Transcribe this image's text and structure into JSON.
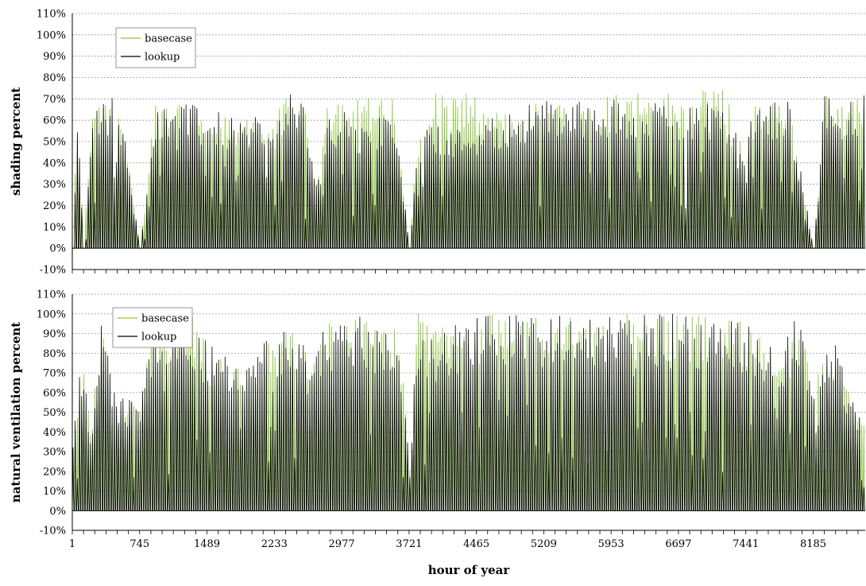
{
  "xlabel": "hour of year",
  "colors": {
    "basecase": "#8cc63f",
    "lookup": "#000000",
    "grid": "#9a9a9a"
  },
  "chart_data": [
    {
      "type": "line",
      "title": "",
      "ylabel": "shading percent",
      "ylim": [
        -10,
        110
      ],
      "y_ticks": [
        "-10%",
        "0%",
        "10%",
        "20%",
        "30%",
        "40%",
        "50%",
        "60%",
        "70%",
        "80%",
        "90%",
        "100%",
        "110%"
      ],
      "xlim": [
        1,
        8760
      ],
      "x_ticks": [],
      "grid": "horizontal dotted",
      "legend_position": "top-left",
      "series": [
        {
          "name": "basecase",
          "color": "#8cc63f",
          "daily_peak_profile": [
            [
              1,
              0
            ],
            [
              48,
              68
            ],
            [
              120,
              0
            ],
            [
              200,
              62
            ],
            [
              336,
              69
            ],
            [
              500,
              74
            ],
            [
              745,
              0
            ],
            [
              900,
              70
            ],
            [
              1050,
              72
            ],
            [
              1100,
              73
            ],
            [
              1300,
              68
            ],
            [
              1489,
              62
            ],
            [
              1600,
              64
            ],
            [
              1800,
              60
            ],
            [
              2000,
              63
            ],
            [
              2233,
              62
            ],
            [
              2400,
              74
            ],
            [
              2550,
              72
            ],
            [
              2700,
              30
            ],
            [
              2800,
              74
            ],
            [
              2977,
              73
            ],
            [
              3100,
              74
            ],
            [
              3200,
              74
            ],
            [
              3400,
              70
            ],
            [
              3550,
              72
            ],
            [
              3721,
              0
            ],
            [
              3800,
              50
            ],
            [
              3900,
              60
            ],
            [
              4000,
              74
            ],
            [
              4100,
              75
            ],
            [
              4200,
              72
            ],
            [
              4300,
              74
            ],
            [
              4400,
              75
            ],
            [
              4465,
              70
            ],
            [
              4600,
              60
            ],
            [
              4700,
              65
            ],
            [
              4800,
              64
            ],
            [
              5000,
              68
            ],
            [
              5209,
              70
            ],
            [
              5400,
              70
            ],
            [
              5600,
              72
            ],
            [
              5800,
              74
            ],
            [
              5953,
              74
            ],
            [
              6100,
              74
            ],
            [
              6300,
              75
            ],
            [
              6500,
              75
            ],
            [
              6697,
              70
            ],
            [
              6800,
              73
            ],
            [
              7000,
              74
            ],
            [
              7200,
              75
            ],
            [
              7441,
              40
            ],
            [
              7500,
              70
            ],
            [
              7700,
              68
            ],
            [
              7900,
              72
            ],
            [
              8185,
              0
            ],
            [
              8300,
              72
            ],
            [
              8500,
              70
            ],
            [
              8600,
              73
            ],
            [
              8760,
              72
            ]
          ]
        },
        {
          "name": "lookup",
          "color": "#000000",
          "daily_peak_profile": [
            [
              1,
              0
            ],
            [
              48,
              68
            ],
            [
              120,
              0
            ],
            [
              200,
              62
            ],
            [
              336,
              69
            ],
            [
              500,
              74
            ],
            [
              745,
              0
            ],
            [
              900,
              70
            ],
            [
              1050,
              72
            ],
            [
              1100,
              73
            ],
            [
              1300,
              68
            ],
            [
              1489,
              62
            ],
            [
              1600,
              64
            ],
            [
              1800,
              60
            ],
            [
              2000,
              63
            ],
            [
              2233,
              62
            ],
            [
              2400,
              72
            ],
            [
              2550,
              70
            ],
            [
              2700,
              30
            ],
            [
              2800,
              60
            ],
            [
              2977,
              65
            ],
            [
              3100,
              60
            ],
            [
              3200,
              58
            ],
            [
              3400,
              62
            ],
            [
              3550,
              65
            ],
            [
              3721,
              0
            ],
            [
              3800,
              48
            ],
            [
              3900,
              55
            ],
            [
              4000,
              62
            ],
            [
              4100,
              60
            ],
            [
              4200,
              55
            ],
            [
              4300,
              58
            ],
            [
              4400,
              62
            ],
            [
              4465,
              60
            ],
            [
              4600,
              60
            ],
            [
              4700,
              65
            ],
            [
              4800,
              64
            ],
            [
              5000,
              68
            ],
            [
              5209,
              70
            ],
            [
              5400,
              70
            ],
            [
              5600,
              70
            ],
            [
              5800,
              70
            ],
            [
              5953,
              70
            ],
            [
              6100,
              70
            ],
            [
              6300,
              70
            ],
            [
              6500,
              70
            ],
            [
              6697,
              68
            ],
            [
              6800,
              70
            ],
            [
              7000,
              70
            ],
            [
              7200,
              70
            ],
            [
              7441,
              40
            ],
            [
              7500,
              70
            ],
            [
              7700,
              68
            ],
            [
              7900,
              72
            ],
            [
              8185,
              0
            ],
            [
              8300,
              72
            ],
            [
              8500,
              70
            ],
            [
              8600,
              73
            ],
            [
              8760,
              72
            ]
          ]
        }
      ]
    },
    {
      "type": "line",
      "title": "",
      "ylabel": "natural ventilation percent",
      "ylim": [
        -10,
        110
      ],
      "y_ticks": [
        "-10%",
        "0%",
        "10%",
        "20%",
        "30%",
        "40%",
        "50%",
        "60%",
        "70%",
        "80%",
        "90%",
        "100%",
        "110%"
      ],
      "xlim": [
        1,
        8760
      ],
      "x_ticks": [
        "1",
        "745",
        "1489",
        "2233",
        "2977",
        "3721",
        "4465",
        "5209",
        "5953",
        "6697",
        "7441",
        "8185"
      ],
      "grid": "horizontal dotted",
      "legend_position": "top-left",
      "series": [
        {
          "name": "basecase",
          "color": "#8cc63f",
          "daily_peak_profile": [
            [
              1,
              35
            ],
            [
              100,
              80
            ],
            [
              200,
              40
            ],
            [
              300,
              100
            ],
            [
              500,
              60
            ],
            [
              745,
              55
            ],
            [
              900,
              100
            ],
            [
              1100,
              90
            ],
            [
              1300,
              100
            ],
            [
              1489,
              85
            ],
            [
              1700,
              80
            ],
            [
              1900,
              70
            ],
            [
              2100,
              90
            ],
            [
              2233,
              80
            ],
            [
              2400,
              100
            ],
            [
              2600,
              80
            ],
            [
              2800,
              100
            ],
            [
              2977,
              100
            ],
            [
              3200,
              100
            ],
            [
              3400,
              90
            ],
            [
              3600,
              100
            ],
            [
              3721,
              20
            ],
            [
              3800,
              100
            ],
            [
              4000,
              100
            ],
            [
              4200,
              100
            ],
            [
              4465,
              100
            ],
            [
              4700,
              100
            ],
            [
              5000,
              100
            ],
            [
              5209,
              100
            ],
            [
              5500,
              100
            ],
            [
              5800,
              100
            ],
            [
              5953,
              100
            ],
            [
              6200,
              100
            ],
            [
              6500,
              100
            ],
            [
              6697,
              100
            ],
            [
              6900,
              100
            ],
            [
              7200,
              100
            ],
            [
              7300,
              100
            ],
            [
              7441,
              95
            ],
            [
              7600,
              90
            ],
            [
              7800,
              80
            ],
            [
              8000,
              100
            ],
            [
              8185,
              70
            ],
            [
              8400,
              90
            ],
            [
              8600,
              60
            ],
            [
              8760,
              45
            ]
          ]
        },
        {
          "name": "lookup",
          "color": "#000000",
          "daily_peak_profile": [
            [
              1,
              35
            ],
            [
              100,
              80
            ],
            [
              200,
              40
            ],
            [
              300,
              100
            ],
            [
              500,
              60
            ],
            [
              745,
              55
            ],
            [
              900,
              100
            ],
            [
              1100,
              90
            ],
            [
              1300,
              100
            ],
            [
              1489,
              85
            ],
            [
              1700,
              80
            ],
            [
              1900,
              70
            ],
            [
              2100,
              90
            ],
            [
              2233,
              80
            ],
            [
              2400,
              100
            ],
            [
              2600,
              80
            ],
            [
              2800,
              95
            ],
            [
              2977,
              100
            ],
            [
              3200,
              100
            ],
            [
              3400,
              90
            ],
            [
              3600,
              100
            ],
            [
              3721,
              20
            ],
            [
              3800,
              95
            ],
            [
              4000,
              90
            ],
            [
              4200,
              95
            ],
            [
              4465,
              100
            ],
            [
              4700,
              100
            ],
            [
              5000,
              100
            ],
            [
              5209,
              100
            ],
            [
              5500,
              100
            ],
            [
              5800,
              100
            ],
            [
              5953,
              100
            ],
            [
              6200,
              100
            ],
            [
              6500,
              100
            ],
            [
              6697,
              100
            ],
            [
              6900,
              100
            ],
            [
              7200,
              100
            ],
            [
              7300,
              100
            ],
            [
              7441,
              95
            ],
            [
              7600,
              90
            ],
            [
              7800,
              80
            ],
            [
              8000,
              100
            ],
            [
              8185,
              70
            ],
            [
              8400,
              90
            ],
            [
              8600,
              60
            ],
            [
              8760,
              45
            ]
          ]
        }
      ]
    }
  ]
}
